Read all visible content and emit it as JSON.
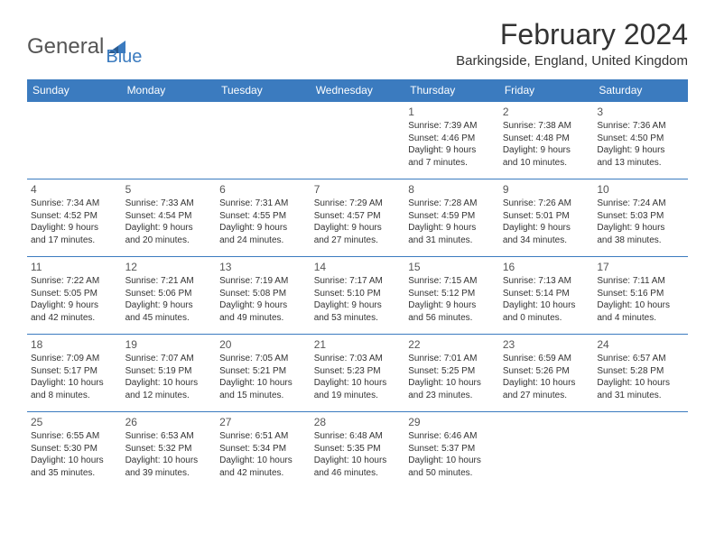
{
  "logo": {
    "text1": "General",
    "text2": "Blue"
  },
  "title": "February 2024",
  "location": "Barkingside, England, United Kingdom",
  "colors": {
    "header_bg": "#3b7bbf",
    "header_text": "#ffffff",
    "border": "#3b7bbf",
    "text": "#333333",
    "logo_gray": "#555555",
    "logo_blue": "#3b7bbf"
  },
  "day_headers": [
    "Sunday",
    "Monday",
    "Tuesday",
    "Wednesday",
    "Thursday",
    "Friday",
    "Saturday"
  ],
  "weeks": [
    [
      {
        "blank": true
      },
      {
        "blank": true
      },
      {
        "blank": true
      },
      {
        "blank": true
      },
      {
        "num": "1",
        "sunrise": "Sunrise: 7:39 AM",
        "sunset": "Sunset: 4:46 PM",
        "daylight1": "Daylight: 9 hours",
        "daylight2": "and 7 minutes."
      },
      {
        "num": "2",
        "sunrise": "Sunrise: 7:38 AM",
        "sunset": "Sunset: 4:48 PM",
        "daylight1": "Daylight: 9 hours",
        "daylight2": "and 10 minutes."
      },
      {
        "num": "3",
        "sunrise": "Sunrise: 7:36 AM",
        "sunset": "Sunset: 4:50 PM",
        "daylight1": "Daylight: 9 hours",
        "daylight2": "and 13 minutes."
      }
    ],
    [
      {
        "num": "4",
        "sunrise": "Sunrise: 7:34 AM",
        "sunset": "Sunset: 4:52 PM",
        "daylight1": "Daylight: 9 hours",
        "daylight2": "and 17 minutes."
      },
      {
        "num": "5",
        "sunrise": "Sunrise: 7:33 AM",
        "sunset": "Sunset: 4:54 PM",
        "daylight1": "Daylight: 9 hours",
        "daylight2": "and 20 minutes."
      },
      {
        "num": "6",
        "sunrise": "Sunrise: 7:31 AM",
        "sunset": "Sunset: 4:55 PM",
        "daylight1": "Daylight: 9 hours",
        "daylight2": "and 24 minutes."
      },
      {
        "num": "7",
        "sunrise": "Sunrise: 7:29 AM",
        "sunset": "Sunset: 4:57 PM",
        "daylight1": "Daylight: 9 hours",
        "daylight2": "and 27 minutes."
      },
      {
        "num": "8",
        "sunrise": "Sunrise: 7:28 AM",
        "sunset": "Sunset: 4:59 PM",
        "daylight1": "Daylight: 9 hours",
        "daylight2": "and 31 minutes."
      },
      {
        "num": "9",
        "sunrise": "Sunrise: 7:26 AM",
        "sunset": "Sunset: 5:01 PM",
        "daylight1": "Daylight: 9 hours",
        "daylight2": "and 34 minutes."
      },
      {
        "num": "10",
        "sunrise": "Sunrise: 7:24 AM",
        "sunset": "Sunset: 5:03 PM",
        "daylight1": "Daylight: 9 hours",
        "daylight2": "and 38 minutes."
      }
    ],
    [
      {
        "num": "11",
        "sunrise": "Sunrise: 7:22 AM",
        "sunset": "Sunset: 5:05 PM",
        "daylight1": "Daylight: 9 hours",
        "daylight2": "and 42 minutes."
      },
      {
        "num": "12",
        "sunrise": "Sunrise: 7:21 AM",
        "sunset": "Sunset: 5:06 PM",
        "daylight1": "Daylight: 9 hours",
        "daylight2": "and 45 minutes."
      },
      {
        "num": "13",
        "sunrise": "Sunrise: 7:19 AM",
        "sunset": "Sunset: 5:08 PM",
        "daylight1": "Daylight: 9 hours",
        "daylight2": "and 49 minutes."
      },
      {
        "num": "14",
        "sunrise": "Sunrise: 7:17 AM",
        "sunset": "Sunset: 5:10 PM",
        "daylight1": "Daylight: 9 hours",
        "daylight2": "and 53 minutes."
      },
      {
        "num": "15",
        "sunrise": "Sunrise: 7:15 AM",
        "sunset": "Sunset: 5:12 PM",
        "daylight1": "Daylight: 9 hours",
        "daylight2": "and 56 minutes."
      },
      {
        "num": "16",
        "sunrise": "Sunrise: 7:13 AM",
        "sunset": "Sunset: 5:14 PM",
        "daylight1": "Daylight: 10 hours",
        "daylight2": "and 0 minutes."
      },
      {
        "num": "17",
        "sunrise": "Sunrise: 7:11 AM",
        "sunset": "Sunset: 5:16 PM",
        "daylight1": "Daylight: 10 hours",
        "daylight2": "and 4 minutes."
      }
    ],
    [
      {
        "num": "18",
        "sunrise": "Sunrise: 7:09 AM",
        "sunset": "Sunset: 5:17 PM",
        "daylight1": "Daylight: 10 hours",
        "daylight2": "and 8 minutes."
      },
      {
        "num": "19",
        "sunrise": "Sunrise: 7:07 AM",
        "sunset": "Sunset: 5:19 PM",
        "daylight1": "Daylight: 10 hours",
        "daylight2": "and 12 minutes."
      },
      {
        "num": "20",
        "sunrise": "Sunrise: 7:05 AM",
        "sunset": "Sunset: 5:21 PM",
        "daylight1": "Daylight: 10 hours",
        "daylight2": "and 15 minutes."
      },
      {
        "num": "21",
        "sunrise": "Sunrise: 7:03 AM",
        "sunset": "Sunset: 5:23 PM",
        "daylight1": "Daylight: 10 hours",
        "daylight2": "and 19 minutes."
      },
      {
        "num": "22",
        "sunrise": "Sunrise: 7:01 AM",
        "sunset": "Sunset: 5:25 PM",
        "daylight1": "Daylight: 10 hours",
        "daylight2": "and 23 minutes."
      },
      {
        "num": "23",
        "sunrise": "Sunrise: 6:59 AM",
        "sunset": "Sunset: 5:26 PM",
        "daylight1": "Daylight: 10 hours",
        "daylight2": "and 27 minutes."
      },
      {
        "num": "24",
        "sunrise": "Sunrise: 6:57 AM",
        "sunset": "Sunset: 5:28 PM",
        "daylight1": "Daylight: 10 hours",
        "daylight2": "and 31 minutes."
      }
    ],
    [
      {
        "num": "25",
        "sunrise": "Sunrise: 6:55 AM",
        "sunset": "Sunset: 5:30 PM",
        "daylight1": "Daylight: 10 hours",
        "daylight2": "and 35 minutes."
      },
      {
        "num": "26",
        "sunrise": "Sunrise: 6:53 AM",
        "sunset": "Sunset: 5:32 PM",
        "daylight1": "Daylight: 10 hours",
        "daylight2": "and 39 minutes."
      },
      {
        "num": "27",
        "sunrise": "Sunrise: 6:51 AM",
        "sunset": "Sunset: 5:34 PM",
        "daylight1": "Daylight: 10 hours",
        "daylight2": "and 42 minutes."
      },
      {
        "num": "28",
        "sunrise": "Sunrise: 6:48 AM",
        "sunset": "Sunset: 5:35 PM",
        "daylight1": "Daylight: 10 hours",
        "daylight2": "and 46 minutes."
      },
      {
        "num": "29",
        "sunrise": "Sunrise: 6:46 AM",
        "sunset": "Sunset: 5:37 PM",
        "daylight1": "Daylight: 10 hours",
        "daylight2": "and 50 minutes."
      },
      {
        "blank": true
      },
      {
        "blank": true
      }
    ]
  ]
}
